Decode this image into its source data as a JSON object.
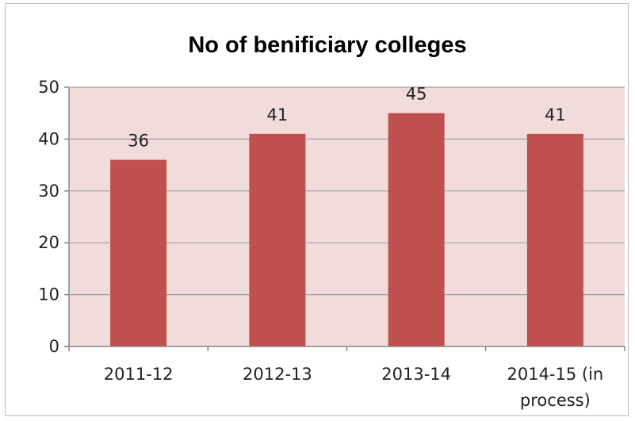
{
  "chart_data": {
    "type": "bar",
    "title": "No of benificiary colleges",
    "categories": [
      "2011-12",
      "2012-13",
      "2013-14",
      "2014-15 (in process)"
    ],
    "category_lines": [
      [
        "2011-12"
      ],
      [
        "2012-13"
      ],
      [
        "2013-14"
      ],
      [
        "2014-15 (in",
        "process)"
      ]
    ],
    "values": [
      36,
      41,
      45,
      41
    ],
    "data_labels": [
      "36",
      "41",
      "45",
      "41"
    ],
    "ylim": [
      0,
      50
    ],
    "yticks": [
      0,
      10,
      20,
      30,
      40,
      50
    ],
    "ytick_labels": [
      "0",
      "10",
      "20",
      "30",
      "40",
      "50"
    ],
    "xlabel": "",
    "ylabel": "",
    "grid": true,
    "legend": "none",
    "colors": {
      "bar": "#c0504d",
      "plot_bg": "#f2dcdb",
      "grid": "#a0a0a0",
      "axis": "#888888"
    }
  }
}
